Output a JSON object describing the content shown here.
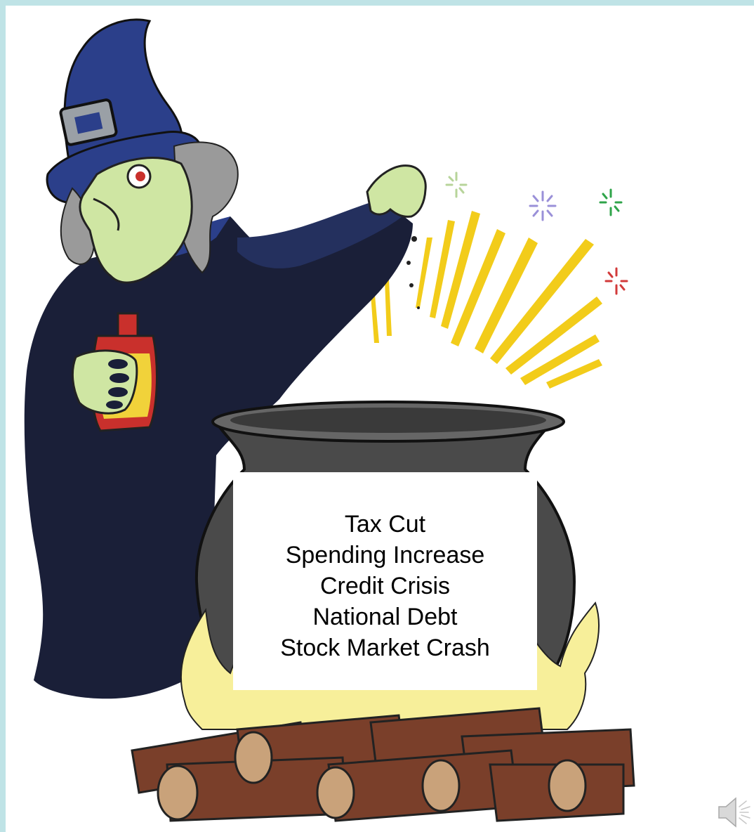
{
  "slide": {
    "background": "#ffffff",
    "frame_color": "#bfe3e6"
  },
  "cauldron_label": {
    "items": [
      "Tax Cut",
      "Spending Increase",
      "Credit Crisis",
      "National Debt",
      "Stock Market Crash"
    ]
  },
  "illustration": {
    "subject": "witch-stirring-cauldron-icon",
    "colors": {
      "hat": "#2b3f8a",
      "robe": "#1a1f38",
      "skin": "#cfe6a3",
      "hair": "#9a9a9a",
      "bottle": "#f1d23a",
      "cauldron": "#4a4a4a",
      "flame": "#f7ef9a",
      "logs": "#7a3f2a",
      "sparks": "#f2cc1a"
    }
  },
  "audio": {
    "icon": "speaker-icon"
  }
}
